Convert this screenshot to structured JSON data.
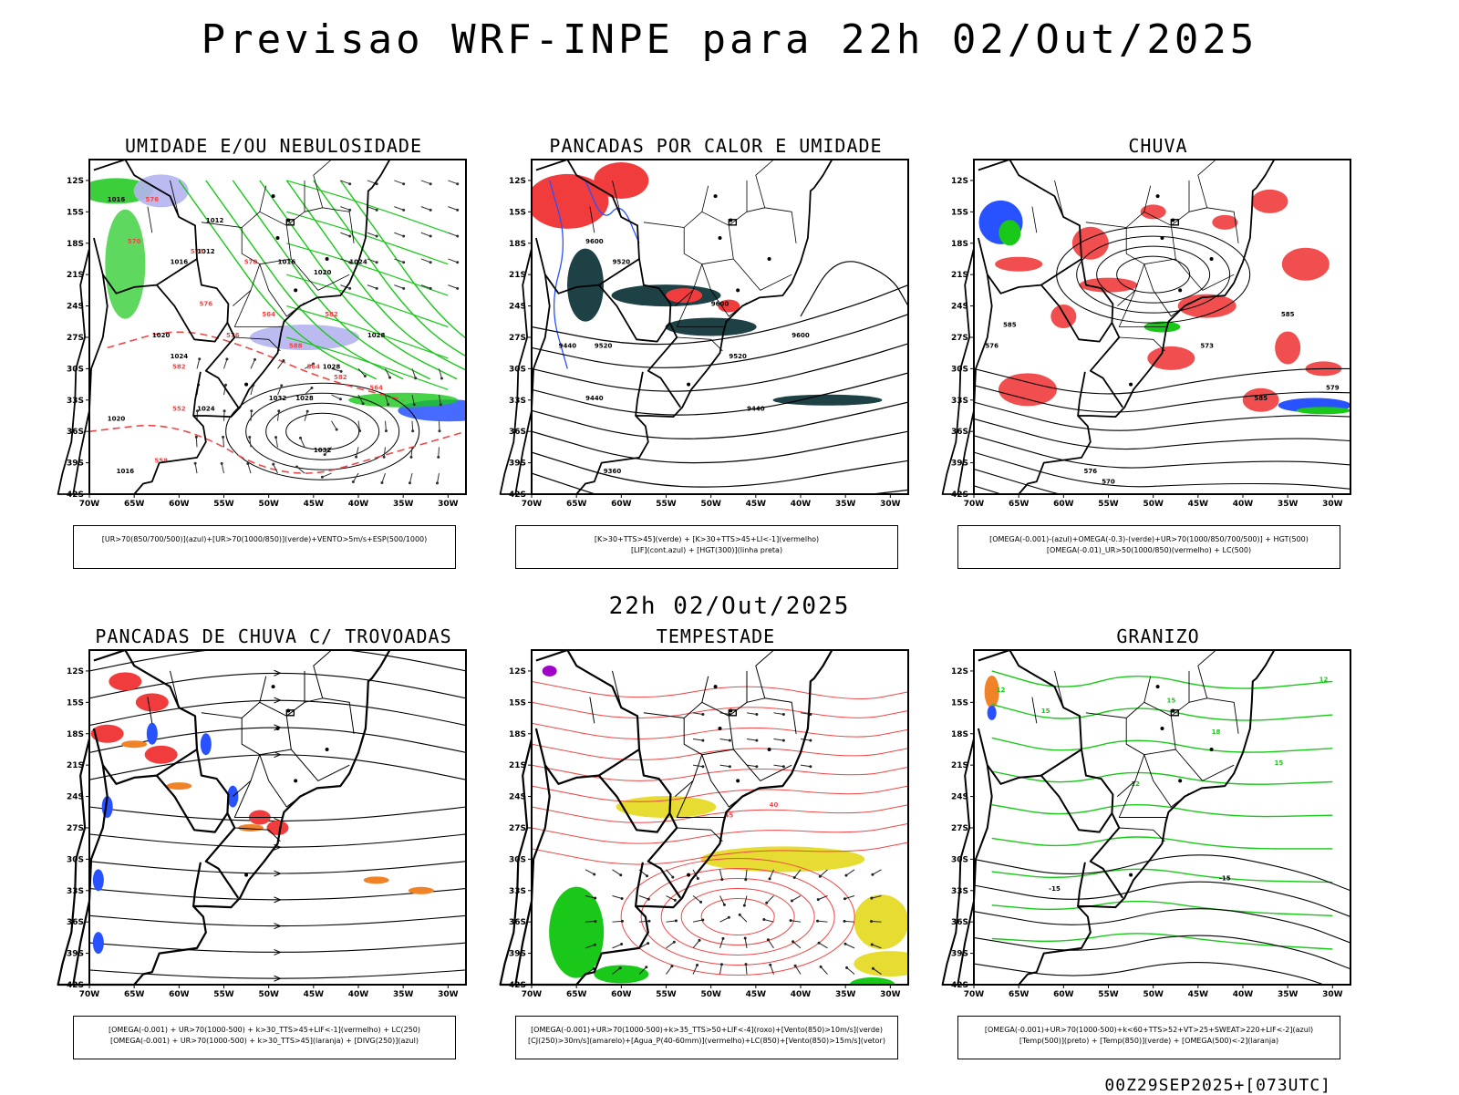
{
  "header": {
    "title": "Previsao WRF-INPE  para 22h 02/Out/2025"
  },
  "middle": {
    "subtitle": "22h 02/Out/2025"
  },
  "footer": {
    "run": "00Z29SEP2025+[073UTC]"
  },
  "axes": {
    "lat_labels": [
      "12S",
      "15S",
      "18S",
      "21S",
      "24S",
      "27S",
      "30S",
      "33S",
      "36S",
      "39S",
      "42S"
    ],
    "lon_labels": [
      "70W",
      "65W",
      "60W",
      "55W",
      "50W",
      "45W",
      "40W",
      "35W",
      "30W"
    ]
  },
  "panels": [
    {
      "title": "UMIDADE E/OU NEBULOSIDADE",
      "legend": [
        "[UR>70(850/700/500)](azul)+[UR>70(1000/850)](verde)+VENTO>5m/s+ESP(500/1000)"
      ],
      "labels": [
        "1016",
        "1012",
        "1016",
        "1012",
        "1020",
        "1016",
        "1024",
        "1020",
        "1024",
        "1028",
        "1028",
        "1024",
        "1032",
        "1032",
        "1020",
        "1016",
        "1028",
        "576",
        "570",
        "576",
        "570",
        "576",
        "564",
        "582",
        "576",
        "588",
        "582",
        "552",
        "558",
        "564",
        "582",
        "564"
      ]
    },
    {
      "title": "PANCADAS POR CALOR E UMIDADE",
      "legend": [
        "[K>30+TTS>45](verde)  +  [K>30+TTS>45+LI<-1](vermelho)",
        "[LIF](cont.azul)  +  [HGT(300)](linha preta)"
      ],
      "labels": [
        "9600",
        "9520",
        "9440",
        "9600",
        "9520",
        "9440",
        "9360",
        "9600",
        "9440",
        "9520"
      ]
    },
    {
      "title": "CHUVA",
      "legend": [
        "[OMEGA(-0.001)-(azul)+OMEGA(-0.3)-(verde)+UR>70(1000/850/700/500)]  +  HGT(500)",
        "[OMEGA(-0.01)_UR>50(1000/850)(vermelho)  +  LC(500)"
      ],
      "labels": [
        "585",
        "576",
        "585",
        "576",
        "570",
        "573",
        "585",
        "579"
      ]
    },
    {
      "title": "PANCADAS DE CHUVA C/ TROVOADAS",
      "legend": [
        "[OMEGA(-0.001)  +  UR>70(1000-500)  +  k>30_TTS>45+LIF<-1](vermelho)  +  LC(250)",
        "[OMEGA(-0.001)  +  UR>70(1000-500)  +  k>30_TTS>45](laranja)  +  [DIVG(250)](azul)"
      ],
      "labels": []
    },
    {
      "title": "TEMPESTADE",
      "legend": [
        "[OMEGA(-0.001)+UR>70(1000-500)+k>35_TTS>50+LIF<-4](roxo)+[Vento(850)>10m/s](verde)",
        "[CJ(250)>30m/s](amarelo)+[Agua_P(40-60mm)](vermelho)+LC(850)+[Vento(850)>15m/s](vetor)"
      ],
      "labels": [
        "40",
        "45"
      ]
    },
    {
      "title": "GRANIZO",
      "legend": [
        "[OMEGA(-0.001)+UR>70(1000-500)+k<60+TTS>52+VT>25+SWEAT>220+LIF<-2](azul)",
        "[Temp(500)](preto)  +  [Temp(850)](verde)  +  [OMEGA(500)<-2](laranja)"
      ],
      "labels": [
        "12",
        "15",
        "12",
        "15",
        "18",
        "15",
        "-15",
        "-15",
        "12"
      ]
    }
  ],
  "colors": {
    "green": "#19c819",
    "blue": "#2851ff",
    "red": "#f03c3c",
    "dark_teal": "#1e4146",
    "yellow": "#e6dc32",
    "orange": "#f08228",
    "purple": "#a000c8",
    "lavender": "#b4b4f0",
    "contour_red": "#f04646",
    "black": "#000000"
  }
}
